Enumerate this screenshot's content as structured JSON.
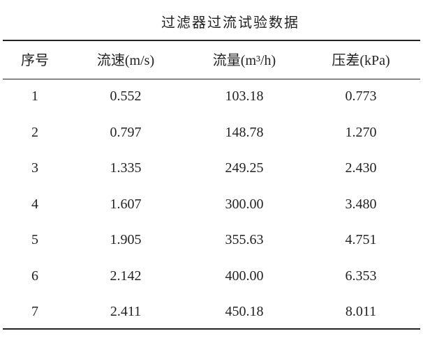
{
  "title": "过滤器过流试验数据",
  "table": {
    "header": [
      "序号",
      "流速(m/s)",
      "流量(m³/h)",
      "压差(kPa)"
    ],
    "rows": [
      [
        "1",
        "0.552",
        "103.18",
        "0.773"
      ],
      [
        "2",
        "0.797",
        "148.78",
        "1.270"
      ],
      [
        "3",
        "1.335",
        "249.25",
        "2.430"
      ],
      [
        "4",
        "1.607",
        "300.00",
        "3.480"
      ],
      [
        "5",
        "1.905",
        "355.63",
        "4.751"
      ],
      [
        "6",
        "2.142",
        "400.00",
        "6.353"
      ],
      [
        "7",
        "2.411",
        "450.18",
        "8.011"
      ]
    ]
  }
}
